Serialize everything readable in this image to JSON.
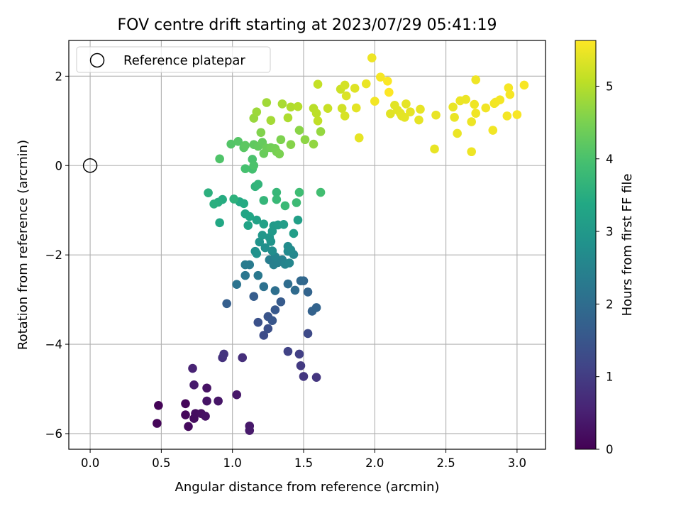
{
  "chart_data": {
    "type": "scatter",
    "title": "FOV centre drift starting at 2023/07/29 05:41:19",
    "xlabel": "Angular distance from reference (arcmin)",
    "ylabel": "Rotation from reference (arcmin)",
    "xlim": [
      -0.15,
      3.2
    ],
    "ylim": [
      -6.35,
      2.8
    ],
    "xticks": [
      0.0,
      0.5,
      1.0,
      1.5,
      2.0,
      2.5,
      3.0
    ],
    "xtick_labels": [
      "0.0",
      "0.5",
      "1.0",
      "1.5",
      "2.0",
      "2.5",
      "3.0"
    ],
    "yticks": [
      -6,
      -4,
      -2,
      0,
      2
    ],
    "ytick_labels": [
      "−6",
      "−4",
      "−2",
      "0",
      "2"
    ],
    "grid": true,
    "legend": {
      "placement": "top-left",
      "entries": [
        "Reference platepar"
      ]
    },
    "reference_point": {
      "x": 0.0,
      "y": 0.0
    },
    "colorbar": {
      "label": "Hours from first FF file",
      "colormap": "viridis",
      "range": [
        0,
        5.63
      ],
      "ticks": [
        0,
        1,
        2,
        3,
        4,
        5
      ],
      "tick_labels": [
        "0",
        "1",
        "2",
        "3",
        "4",
        "5"
      ]
    },
    "points": [
      [
        0.48,
        -5.37,
        0.05
      ],
      [
        0.47,
        -5.77,
        0.08
      ],
      [
        0.67,
        -5.33,
        0.1
      ],
      [
        0.67,
        -5.58,
        0.12
      ],
      [
        0.69,
        -5.84,
        0.15
      ],
      [
        0.73,
        -5.66,
        0.17
      ],
      [
        0.74,
        -5.55,
        0.2
      ],
      [
        0.78,
        -5.55,
        0.22
      ],
      [
        0.81,
        -5.61,
        0.25
      ],
      [
        0.82,
        -4.98,
        0.27
      ],
      [
        0.82,
        -5.27,
        0.3
      ],
      [
        0.9,
        -5.27,
        0.32
      ],
      [
        1.03,
        -5.13,
        0.35
      ],
      [
        1.12,
        -5.83,
        0.37
      ],
      [
        1.12,
        -5.93,
        0.4
      ],
      [
        0.73,
        -4.91,
        0.42
      ],
      [
        0.72,
        -4.54,
        0.55
      ],
      [
        0.93,
        -4.3,
        0.8
      ],
      [
        0.94,
        -4.22,
        0.85
      ],
      [
        1.07,
        -4.3,
        0.75
      ],
      [
        1.39,
        -4.16,
        1.1
      ],
      [
        1.47,
        -4.22,
        1.05
      ],
      [
        1.48,
        -4.48,
        0.95
      ],
      [
        1.5,
        -4.72,
        0.9
      ],
      [
        1.59,
        -4.74,
        0.88
      ],
      [
        1.53,
        -3.76,
        1.25
      ],
      [
        1.22,
        -3.8,
        1.3
      ],
      [
        1.25,
        -3.65,
        1.35
      ],
      [
        1.18,
        -3.51,
        1.4
      ],
      [
        1.25,
        -3.38,
        1.45
      ],
      [
        1.28,
        -3.47,
        1.5
      ],
      [
        1.3,
        -3.23,
        1.55
      ],
      [
        1.34,
        -3.05,
        1.6
      ],
      [
        1.15,
        -2.93,
        1.65
      ],
      [
        0.96,
        -3.09,
        1.7
      ],
      [
        1.56,
        -3.26,
        1.75
      ],
      [
        1.59,
        -3.18,
        1.78
      ],
      [
        1.53,
        -2.83,
        1.8
      ],
      [
        1.5,
        -2.58,
        1.85
      ],
      [
        1.48,
        -2.58,
        1.9
      ],
      [
        1.44,
        -2.79,
        1.95
      ],
      [
        1.39,
        -2.65,
        2.0
      ],
      [
        1.3,
        -2.8,
        2.05
      ],
      [
        1.22,
        -2.71,
        2.1
      ],
      [
        1.03,
        -2.66,
        2.15
      ],
      [
        1.09,
        -2.46,
        2.2
      ],
      [
        1.18,
        -2.46,
        2.25
      ],
      [
        1.12,
        -2.22,
        2.3
      ],
      [
        1.09,
        -2.22,
        2.33
      ],
      [
        1.26,
        -2.11,
        2.36
      ],
      [
        1.29,
        -2.22,
        2.4
      ],
      [
        1.32,
        -2.17,
        2.43
      ],
      [
        1.35,
        -2.11,
        2.46
      ],
      [
        1.3,
        -2.04,
        2.5
      ],
      [
        1.37,
        -2.21,
        2.53
      ],
      [
        1.4,
        -2.18,
        2.56
      ],
      [
        1.43,
        -1.99,
        2.6
      ],
      [
        1.39,
        -1.92,
        2.63
      ],
      [
        1.41,
        -1.89,
        2.66
      ],
      [
        1.39,
        -1.81,
        2.7
      ],
      [
        1.28,
        -1.91,
        2.73
      ],
      [
        1.23,
        -1.84,
        2.76
      ],
      [
        1.16,
        -1.92,
        2.8
      ],
      [
        1.17,
        -1.97,
        2.83
      ],
      [
        1.19,
        -1.71,
        2.86
      ],
      [
        1.27,
        -1.7,
        2.9
      ],
      [
        1.26,
        -1.61,
        2.93
      ],
      [
        1.21,
        -1.56,
        2.96
      ],
      [
        1.28,
        -1.47,
        3.0
      ],
      [
        1.29,
        -1.35,
        3.03
      ],
      [
        1.32,
        -1.33,
        3.06
      ],
      [
        1.36,
        -1.32,
        3.1
      ],
      [
        1.43,
        -1.52,
        3.13
      ],
      [
        1.46,
        -1.22,
        3.16
      ],
      [
        1.22,
        -1.31,
        3.2
      ],
      [
        1.17,
        -1.22,
        3.23
      ],
      [
        1.11,
        -1.34,
        3.26
      ],
      [
        1.09,
        -1.08,
        3.3
      ],
      [
        1.12,
        -1.14,
        3.33
      ],
      [
        0.91,
        -1.28,
        3.36
      ],
      [
        1.05,
        -0.81,
        3.4
      ],
      [
        1.08,
        -0.85,
        3.43
      ],
      [
        0.93,
        -0.76,
        3.46
      ],
      [
        0.9,
        -0.82,
        3.5
      ],
      [
        0.87,
        -0.86,
        3.53
      ],
      [
        0.83,
        -0.61,
        3.56
      ],
      [
        1.01,
        -0.75,
        3.6
      ],
      [
        1.16,
        -0.47,
        3.63
      ],
      [
        1.18,
        -0.42,
        3.66
      ],
      [
        1.22,
        -0.78,
        3.7
      ],
      [
        1.31,
        -0.6,
        3.73
      ],
      [
        1.31,
        -0.76,
        3.76
      ],
      [
        1.37,
        -0.9,
        3.8
      ],
      [
        1.45,
        -0.83,
        3.83
      ],
      [
        1.47,
        -0.6,
        3.86
      ],
      [
        1.62,
        -0.6,
        3.9
      ],
      [
        1.14,
        -0.08,
        3.93
      ],
      [
        1.09,
        -0.07,
        3.96
      ],
      [
        1.14,
        0.14,
        4.0
      ],
      [
        1.15,
        0.0,
        4.03
      ],
      [
        0.91,
        0.15,
        4.06
      ],
      [
        0.99,
        0.48,
        4.1
      ],
      [
        1.04,
        0.54,
        4.13
      ],
      [
        1.08,
        0.4,
        4.16
      ],
      [
        1.09,
        0.45,
        4.2
      ],
      [
        1.15,
        0.47,
        4.23
      ],
      [
        1.18,
        0.43,
        4.26
      ],
      [
        1.21,
        0.52,
        4.3
      ],
      [
        1.22,
        0.27,
        4.33
      ],
      [
        1.24,
        0.39,
        4.36
      ],
      [
        1.27,
        0.4,
        4.4
      ],
      [
        1.3,
        0.38,
        4.43
      ],
      [
        1.31,
        0.31,
        4.46
      ],
      [
        1.33,
        0.26,
        4.5
      ],
      [
        1.34,
        0.58,
        4.53
      ],
      [
        1.2,
        0.74,
        4.56
      ],
      [
        1.41,
        0.47,
        4.6
      ],
      [
        1.47,
        0.79,
        4.63
      ],
      [
        1.51,
        0.58,
        4.66
      ],
      [
        1.57,
        0.48,
        4.7
      ],
      [
        1.62,
        0.76,
        4.73
      ],
      [
        1.15,
        1.06,
        4.76
      ],
      [
        1.17,
        1.2,
        4.8
      ],
      [
        1.24,
        1.41,
        4.83
      ],
      [
        1.27,
        1.01,
        4.86
      ],
      [
        1.35,
        1.38,
        4.9
      ],
      [
        1.39,
        1.07,
        4.93
      ],
      [
        1.41,
        1.31,
        4.96
      ],
      [
        1.46,
        1.32,
        5.0
      ],
      [
        1.57,
        1.28,
        5.03
      ],
      [
        1.59,
        1.17,
        5.06
      ],
      [
        1.6,
        1.0,
        5.1
      ],
      [
        1.6,
        1.82,
        5.13
      ],
      [
        1.67,
        1.28,
        5.16
      ],
      [
        1.76,
        1.71,
        5.2
      ],
      [
        1.77,
        1.28,
        5.23
      ],
      [
        1.79,
        1.8,
        5.26
      ],
      [
        1.79,
        1.11,
        5.3
      ],
      [
        1.8,
        1.56,
        5.33
      ],
      [
        1.86,
        1.73,
        5.36
      ],
      [
        1.87,
        1.29,
        5.4
      ],
      [
        1.89,
        0.62,
        5.43
      ],
      [
        1.94,
        1.83,
        5.46
      ],
      [
        1.98,
        2.41,
        5.5
      ],
      [
        2.0,
        1.44,
        5.53
      ],
      [
        2.04,
        1.98,
        5.56
      ],
      [
        2.09,
        1.89,
        5.6
      ],
      [
        2.1,
        1.64,
        5.63
      ]
    ],
    "late_points": [
      [
        2.11,
        1.16
      ],
      [
        2.14,
        1.35
      ],
      [
        2.16,
        1.24
      ],
      [
        2.18,
        1.17
      ],
      [
        2.19,
        1.11
      ],
      [
        2.21,
        1.08
      ],
      [
        2.22,
        1.38
      ],
      [
        2.25,
        1.2
      ],
      [
        2.31,
        1.02
      ],
      [
        2.32,
        1.26
      ],
      [
        2.42,
        0.37
      ],
      [
        2.43,
        1.13
      ],
      [
        2.55,
        1.31
      ],
      [
        2.56,
        1.08
      ],
      [
        2.58,
        0.72
      ],
      [
        2.6,
        1.45
      ],
      [
        2.64,
        1.48
      ],
      [
        2.68,
        0.98
      ],
      [
        2.68,
        0.31
      ],
      [
        2.7,
        1.37
      ],
      [
        2.71,
        1.92
      ],
      [
        2.71,
        1.17
      ],
      [
        2.78,
        1.29
      ],
      [
        2.83,
        0.79
      ],
      [
        2.84,
        1.39
      ],
      [
        2.85,
        1.42
      ],
      [
        2.88,
        1.47
      ],
      [
        2.93,
        1.11
      ],
      [
        2.94,
        1.74
      ],
      [
        2.95,
        1.59
      ],
      [
        3.0,
        1.14
      ],
      [
        3.05,
        1.8
      ]
    ]
  }
}
